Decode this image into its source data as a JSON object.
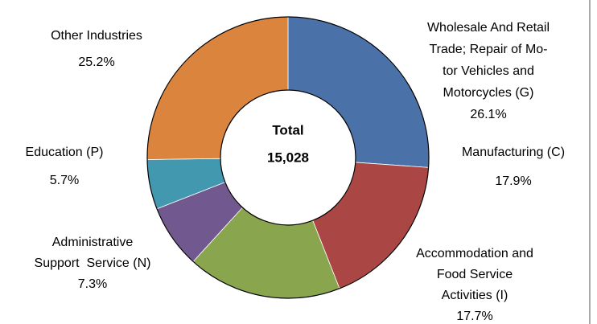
{
  "chart_data": {
    "type": "donut",
    "center_title": "Total",
    "center_value": "15,028",
    "categories": [
      "Wholesale And Retail\nTrade; Repair of Mo-\ntor Vehicles and\nMotorcycles (G)",
      "Manufacturing (C)",
      "Accommodation and\nFood Service\nActivities (I)",
      "Administrative\nSupport  Service (N)",
      "Education (P)",
      "Other Industries"
    ],
    "values": [
      26.1,
      17.9,
      17.7,
      7.3,
      5.7,
      25.2
    ],
    "value_labels": [
      "26.1%",
      "17.9%",
      "17.7%",
      "7.3%",
      "5.7%",
      "25.2%"
    ],
    "colors": [
      "#4a72a8",
      "#aa4643",
      "#89a54e",
      "#71588f",
      "#4198af",
      "#db843d"
    ]
  }
}
